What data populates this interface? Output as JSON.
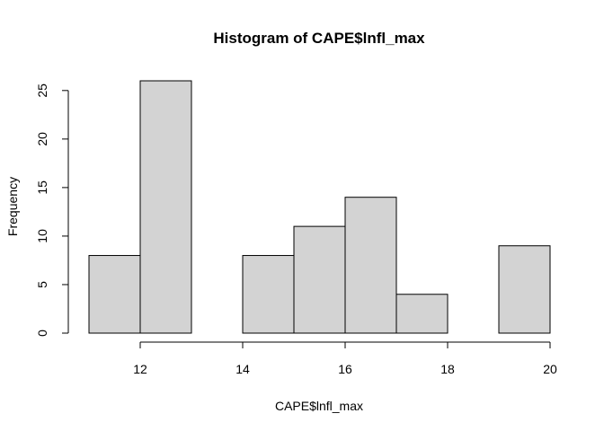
{
  "chart_data": {
    "type": "bar",
    "title": "Histogram of CAPE$lnfl_max",
    "xlabel": "CAPE$lnfl_max",
    "ylabel": "Frequency",
    "bins": [
      {
        "x0": 11,
        "x1": 12,
        "count": 8
      },
      {
        "x0": 12,
        "x1": 13,
        "count": 26
      },
      {
        "x0": 13,
        "x1": 14,
        "count": 0
      },
      {
        "x0": 14,
        "x1": 15,
        "count": 8
      },
      {
        "x0": 15,
        "x1": 16,
        "count": 11
      },
      {
        "x0": 16,
        "x1": 17,
        "count": 14
      },
      {
        "x0": 17,
        "x1": 18,
        "count": 4
      },
      {
        "x0": 18,
        "x1": 19,
        "count": 0
      },
      {
        "x0": 19,
        "x1": 20,
        "count": 9
      }
    ],
    "xticks": [
      "12",
      "14",
      "16",
      "18",
      "20"
    ],
    "yticks": [
      "0",
      "5",
      "10",
      "15",
      "20",
      "25"
    ],
    "xlim": [
      11,
      20
    ],
    "ylim": [
      0,
      26
    ],
    "grid": false,
    "bar_color": "#d3d3d3"
  }
}
